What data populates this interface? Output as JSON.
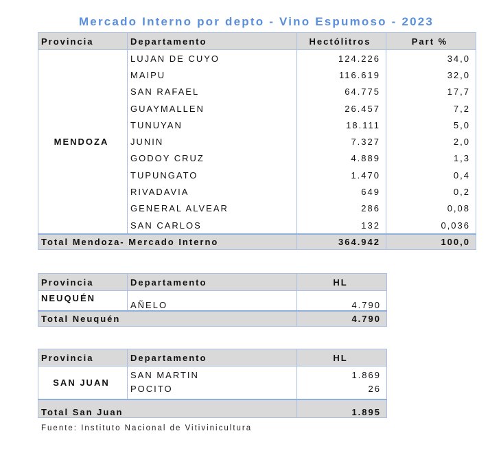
{
  "title": "Mercado Interno por depto - Vino Espumoso - 2023",
  "mendoza": {
    "headers": [
      "Provincia",
      "Departamento",
      "Hectólitros",
      "Part %"
    ],
    "province": "MENDOZA",
    "rows": [
      {
        "depto": "LUJAN DE CUYO",
        "hl": "124.226",
        "part": "34,0"
      },
      {
        "depto": "MAIPU",
        "hl": "116.619",
        "part": "32,0"
      },
      {
        "depto": "SAN RAFAEL",
        "hl": "64.775",
        "part": "17,7"
      },
      {
        "depto": "GUAYMALLEN",
        "hl": "26.457",
        "part": "7,2"
      },
      {
        "depto": "TUNUYAN",
        "hl": "18.111",
        "part": "5,0"
      },
      {
        "depto": "JUNIN",
        "hl": "7.327",
        "part": "2,0"
      },
      {
        "depto": "GODOY CRUZ",
        "hl": "4.889",
        "part": "1,3"
      },
      {
        "depto": "TUPUNGATO",
        "hl": "1.470",
        "part": "0,4"
      },
      {
        "depto": "RIVADAVIA",
        "hl": "649",
        "part": "0,2"
      },
      {
        "depto": "GENERAL ALVEAR",
        "hl": "286",
        "part": "0,08"
      },
      {
        "depto": "SAN CARLOS",
        "hl": "132",
        "part": "0,036"
      }
    ],
    "total": {
      "label": "Total Mendoza- Mercado Interno",
      "hl": "364.942",
      "part": "100,0"
    }
  },
  "neuquen": {
    "headers": [
      "Provincia",
      "Departamento",
      "HL"
    ],
    "province": "NEUQUÉN",
    "rows": [
      {
        "depto": "AÑELO",
        "hl": "4.790"
      }
    ],
    "total": {
      "label": "Total Neuquén",
      "hl": "4.790"
    }
  },
  "sanjuan": {
    "headers": [
      "Provincia",
      "Departamento",
      "HL"
    ],
    "province": "SAN JUAN",
    "rows": [
      {
        "depto": "SAN MARTIN",
        "hl": "1.869"
      },
      {
        "depto": "POCITO",
        "hl": "26"
      }
    ],
    "total": {
      "label": "Total San Juan",
      "hl": "1.895"
    }
  },
  "footer": "Fuente: Instituto Nacional de Vitivinicultura"
}
